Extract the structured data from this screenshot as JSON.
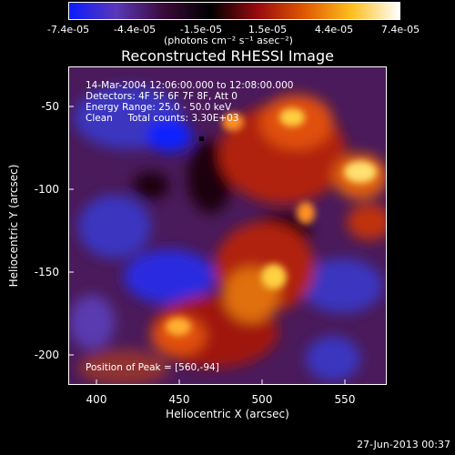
{
  "colorbar": {
    "ticks": [
      "-7.4e-05",
      "-4.4e-05",
      "-1.5e-05",
      "1.5e-05",
      "4.4e-05",
      "7.4e-05"
    ],
    "units": "(photons cm⁻² s⁻¹ asec⁻²)",
    "colors": [
      "#0b1cff",
      "#5a38b8",
      "#3a0a3a",
      "#000000",
      "#9a0a10",
      "#e05a00",
      "#ffc020",
      "#ffffff"
    ]
  },
  "title": "Reconstructed RHESSI Image",
  "annotations": {
    "line1": "14-Mar-2004 12:06:00.000 to 12:08:00.000",
    "line2": "Detectors: 4F 5F 6F 7F 8F, Att 0",
    "line3": "Energy Range: 25.0 - 50.0 keV",
    "line4": "Clean     Total counts: 3.30E+03",
    "peak": "Position of Peak = [560,-94]"
  },
  "axes": {
    "xlabel": "Heliocentric X (arcsec)",
    "ylabel": "Heliocentric Y (arcsec)",
    "x_ticks": [
      "400",
      "450",
      "500",
      "550"
    ],
    "y_ticks": [
      "-50",
      "-100",
      "-150",
      "-200"
    ]
  },
  "timestamp": "27-Jun-2013 00:37"
}
